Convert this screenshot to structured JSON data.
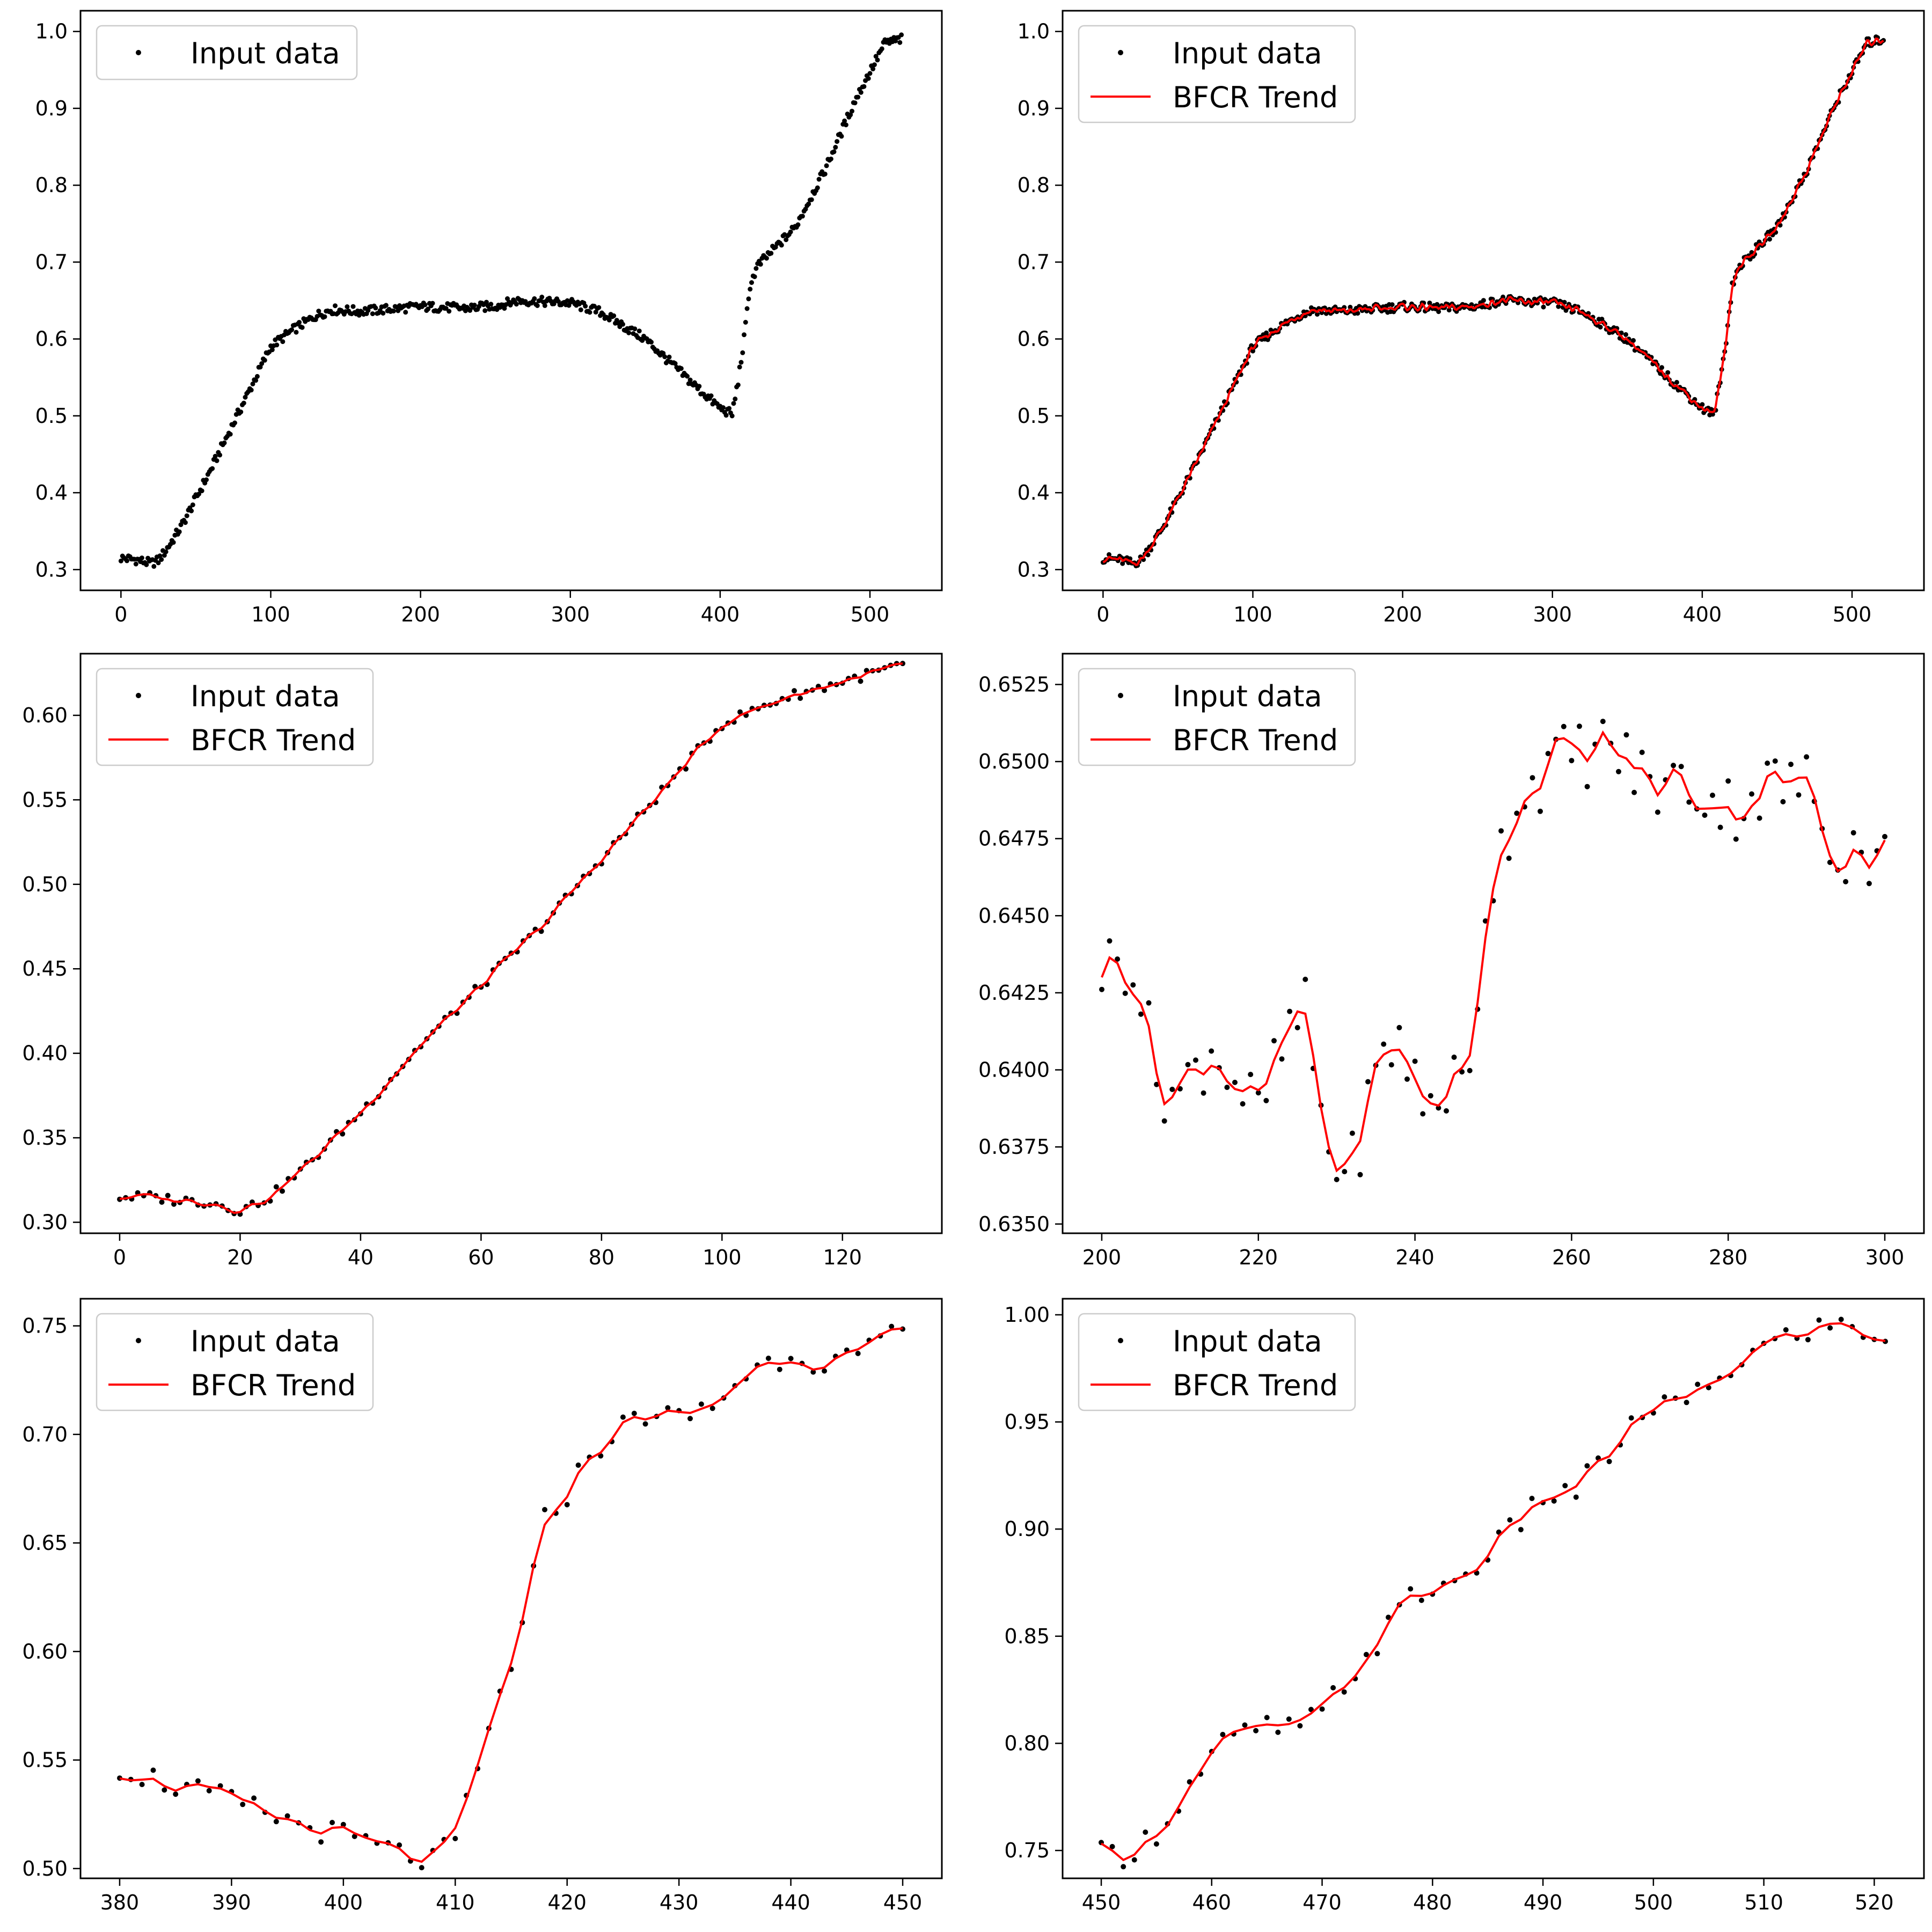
{
  "figure": {
    "background": "#ffffff"
  },
  "colors": {
    "points": "#000000",
    "trend": "#ff0000",
    "legend_border": "#cccccc"
  },
  "legend": {
    "data_label": "Input data",
    "trend_label": "BFCR Trend"
  },
  "chart_data": [
    {
      "type": "scatter",
      "panel": "top-left",
      "title": "",
      "xlabel": "",
      "ylabel": "",
      "legend_placement": "top-left",
      "show_trend": false,
      "xlim": [
        -27,
        548
      ],
      "ylim": [
        0.273,
        1.027
      ],
      "xticks": [
        0,
        100,
        200,
        300,
        400,
        500
      ],
      "xtick_labels": [
        "0",
        "100",
        "200",
        "300",
        "400",
        "500"
      ],
      "yticks": [
        0.3,
        0.4,
        0.5,
        0.6,
        0.7,
        0.8,
        0.9,
        1.0
      ],
      "ytick_labels": [
        "0.3",
        "0.4",
        "0.5",
        "0.6",
        "0.7",
        "0.8",
        "0.9",
        "1.0"
      ],
      "curve_keypoints": [
        [
          0,
          0.315
        ],
        [
          10,
          0.313
        ],
        [
          20,
          0.308
        ],
        [
          25,
          0.312
        ],
        [
          30,
          0.325
        ],
        [
          40,
          0.355
        ],
        [
          60,
          0.43
        ],
        [
          80,
          0.51
        ],
        [
          100,
          0.59
        ],
        [
          115,
          0.612
        ],
        [
          130,
          0.63
        ],
        [
          140,
          0.638
        ],
        [
          160,
          0.636
        ],
        [
          200,
          0.642
        ],
        [
          230,
          0.64
        ],
        [
          250,
          0.643
        ],
        [
          265,
          0.65
        ],
        [
          300,
          0.647
        ],
        [
          320,
          0.635
        ],
        [
          350,
          0.6
        ],
        [
          380,
          0.545
        ],
        [
          400,
          0.51
        ],
        [
          408,
          0.502
        ],
        [
          412,
          0.545
        ],
        [
          416,
          0.6
        ],
        [
          420,
          0.67
        ],
        [
          425,
          0.695
        ],
        [
          440,
          0.725
        ],
        [
          450,
          0.745
        ],
        [
          470,
          0.82
        ],
        [
          490,
          0.91
        ],
        [
          510,
          0.985
        ],
        [
          521,
          0.99
        ]
      ],
      "x_range": [
        0,
        521
      ],
      "point_step": 1,
      "noise_amplitude": 0.006
    },
    {
      "type": "scatter+line",
      "panel": "top-right",
      "title": "",
      "xlabel": "",
      "ylabel": "",
      "legend_placement": "top-left",
      "show_trend": true,
      "xlim": [
        -27,
        548
      ],
      "ylim": [
        0.273,
        1.027
      ],
      "xticks": [
        0,
        100,
        200,
        300,
        400,
        500
      ],
      "xtick_labels": [
        "0",
        "100",
        "200",
        "300",
        "400",
        "500"
      ],
      "yticks": [
        0.3,
        0.4,
        0.5,
        0.6,
        0.7,
        0.8,
        0.9,
        1.0
      ],
      "ytick_labels": [
        "0.3",
        "0.4",
        "0.5",
        "0.6",
        "0.7",
        "0.8",
        "0.9",
        "1.0"
      ],
      "curve_keypoints": [
        [
          0,
          0.315
        ],
        [
          10,
          0.313
        ],
        [
          20,
          0.308
        ],
        [
          25,
          0.312
        ],
        [
          30,
          0.325
        ],
        [
          40,
          0.355
        ],
        [
          60,
          0.43
        ],
        [
          80,
          0.51
        ],
        [
          100,
          0.59
        ],
        [
          115,
          0.612
        ],
        [
          130,
          0.63
        ],
        [
          140,
          0.638
        ],
        [
          160,
          0.636
        ],
        [
          200,
          0.642
        ],
        [
          230,
          0.64
        ],
        [
          250,
          0.643
        ],
        [
          265,
          0.65
        ],
        [
          300,
          0.647
        ],
        [
          320,
          0.635
        ],
        [
          350,
          0.6
        ],
        [
          380,
          0.545
        ],
        [
          400,
          0.51
        ],
        [
          408,
          0.502
        ],
        [
          412,
          0.545
        ],
        [
          416,
          0.6
        ],
        [
          420,
          0.67
        ],
        [
          425,
          0.695
        ],
        [
          440,
          0.725
        ],
        [
          450,
          0.745
        ],
        [
          470,
          0.82
        ],
        [
          490,
          0.91
        ],
        [
          510,
          0.985
        ],
        [
          521,
          0.99
        ]
      ],
      "x_range": [
        0,
        521
      ],
      "point_step": 1,
      "noise_amplitude": 0.006
    },
    {
      "type": "scatter+line",
      "panel": "middle-left",
      "title": "",
      "xlabel": "",
      "ylabel": "",
      "legend_placement": "top-left",
      "show_trend": true,
      "xlim": [
        -6.5,
        136.5
      ],
      "ylim": [
        0.2935,
        0.6365
      ],
      "xticks": [
        0,
        20,
        40,
        60,
        80,
        100,
        120
      ],
      "xtick_labels": [
        "0",
        "20",
        "40",
        "60",
        "80",
        "100",
        "120"
      ],
      "yticks": [
        0.3,
        0.35,
        0.4,
        0.45,
        0.5,
        0.55,
        0.6
      ],
      "ytick_labels": [
        "0.30",
        "0.35",
        "0.40",
        "0.45",
        "0.50",
        "0.55",
        "0.60"
      ],
      "curve_keypoints": [
        [
          0,
          0.315
        ],
        [
          5,
          0.315
        ],
        [
          10,
          0.313
        ],
        [
          15,
          0.312
        ],
        [
          20,
          0.307
        ],
        [
          25,
          0.315
        ],
        [
          30,
          0.33
        ],
        [
          40,
          0.365
        ],
        [
          50,
          0.405
        ],
        [
          60,
          0.44
        ],
        [
          70,
          0.475
        ],
        [
          80,
          0.515
        ],
        [
          90,
          0.555
        ],
        [
          100,
          0.595
        ],
        [
          110,
          0.61
        ],
        [
          120,
          0.62
        ],
        [
          130,
          0.63
        ]
      ],
      "x_range": [
        0,
        130
      ],
      "point_step": 1,
      "noise_amplitude": 0.003
    },
    {
      "type": "scatter+line",
      "panel": "middle-right",
      "title": "",
      "xlabel": "",
      "ylabel": "",
      "legend_placement": "top-left",
      "show_trend": true,
      "xlim": [
        195,
        305
      ],
      "ylim": [
        0.6347,
        0.6535
      ],
      "xticks": [
        200,
        220,
        240,
        260,
        280,
        300
      ],
      "xtick_labels": [
        "200",
        "220",
        "240",
        "260",
        "280",
        "300"
      ],
      "yticks": [
        0.635,
        0.6375,
        0.64,
        0.6425,
        0.645,
        0.6475,
        0.65,
        0.6525
      ],
      "ytick_labels": [
        "0.6350",
        "0.6375",
        "0.6400",
        "0.6425",
        "0.6450",
        "0.6475",
        "0.6500",
        "0.6525"
      ],
      "curve_keypoints": [
        [
          200,
          0.6433
        ],
        [
          204,
          0.6437
        ],
        [
          207,
          0.6397
        ],
        [
          210,
          0.6392
        ],
        [
          214,
          0.6408
        ],
        [
          218,
          0.6393
        ],
        [
          220,
          0.6385
        ],
        [
          224,
          0.6412
        ],
        [
          226,
          0.6418
        ],
        [
          229,
          0.6372
        ],
        [
          232,
          0.6368
        ],
        [
          235,
          0.6398
        ],
        [
          238,
          0.6412
        ],
        [
          241,
          0.6387
        ],
        [
          244,
          0.6395
        ],
        [
          247,
          0.6395
        ],
        [
          249,
          0.6455
        ],
        [
          253,
          0.6488
        ],
        [
          257,
          0.6498
        ],
        [
          260,
          0.6502
        ],
        [
          265,
          0.6505
        ],
        [
          270,
          0.6492
        ],
        [
          275,
          0.6493
        ],
        [
          280,
          0.6485
        ],
        [
          285,
          0.6492
        ],
        [
          290,
          0.6492
        ],
        [
          294,
          0.6472
        ],
        [
          296,
          0.6472
        ],
        [
          300,
          0.6468
        ]
      ],
      "x_range": [
        200,
        300
      ],
      "point_step": 1,
      "noise_amplitude": 0.0012
    },
    {
      "type": "scatter+line",
      "panel": "bottom-left",
      "title": "",
      "xlabel": "",
      "ylabel": "",
      "legend_placement": "top-left",
      "show_trend": true,
      "xlim": [
        376.5,
        453.5
      ],
      "ylim": [
        0.4955,
        0.7625
      ],
      "xticks": [
        380,
        390,
        400,
        410,
        420,
        430,
        440,
        450
      ],
      "xtick_labels": [
        "380",
        "390",
        "400",
        "410",
        "420",
        "430",
        "440",
        "450"
      ],
      "yticks": [
        0.5,
        0.55,
        0.6,
        0.65,
        0.7,
        0.75
      ],
      "ytick_labels": [
        "0.50",
        "0.55",
        "0.60",
        "0.65",
        "0.70",
        "0.75"
      ],
      "curve_keypoints": [
        [
          380,
          0.547
        ],
        [
          385,
          0.538
        ],
        [
          390,
          0.531
        ],
        [
          395,
          0.522
        ],
        [
          400,
          0.515
        ],
        [
          405,
          0.507
        ],
        [
          408,
          0.503
        ],
        [
          410,
          0.512
        ],
        [
          412,
          0.545
        ],
        [
          414,
          0.58
        ],
        [
          416,
          0.61
        ],
        [
          418,
          0.66
        ],
        [
          420,
          0.673
        ],
        [
          422,
          0.69
        ],
        [
          424,
          0.7
        ],
        [
          427,
          0.71
        ],
        [
          430,
          0.707
        ],
        [
          433,
          0.713
        ],
        [
          436,
          0.728
        ],
        [
          440,
          0.738
        ],
        [
          443,
          0.733
        ],
        [
          446,
          0.735
        ],
        [
          448,
          0.74
        ],
        [
          449,
          0.75
        ],
        [
          450,
          0.747
        ]
      ],
      "x_range": [
        380,
        450
      ],
      "point_step": 1,
      "noise_amplitude": 0.006
    },
    {
      "type": "scatter+line",
      "panel": "bottom-right",
      "title": "",
      "xlabel": "",
      "ylabel": "",
      "legend_placement": "top-left",
      "show_trend": true,
      "xlim": [
        446.5,
        524.5
      ],
      "ylim": [
        0.737,
        1.0075
      ],
      "xticks": [
        450,
        460,
        470,
        480,
        490,
        500,
        510,
        520
      ],
      "xtick_labels": [
        "450",
        "460",
        "470",
        "480",
        "490",
        "500",
        "510",
        "520"
      ],
      "yticks": [
        0.75,
        0.8,
        0.85,
        0.9,
        0.95,
        1.0
      ],
      "ytick_labels": [
        "0.75",
        "0.80",
        "0.85",
        "0.90",
        "0.95",
        "1.00"
      ],
      "curve_keypoints": [
        [
          450,
          0.748
        ],
        [
          452,
          0.748
        ],
        [
          455,
          0.758
        ],
        [
          458,
          0.78
        ],
        [
          461,
          0.8
        ],
        [
          465,
          0.808
        ],
        [
          468,
          0.806
        ],
        [
          470,
          0.815
        ],
        [
          474,
          0.84
        ],
        [
          478,
          0.868
        ],
        [
          482,
          0.875
        ],
        [
          486,
          0.893
        ],
        [
          490,
          0.915
        ],
        [
          493,
          0.918
        ],
        [
          496,
          0.935
        ],
        [
          500,
          0.958
        ],
        [
          503,
          0.958
        ],
        [
          507,
          0.975
        ],
        [
          510,
          0.985
        ],
        [
          514,
          0.993
        ],
        [
          517,
          0.995
        ],
        [
          521,
          0.99
        ]
      ],
      "x_range": [
        450,
        521
      ],
      "point_step": 1,
      "noise_amplitude": 0.006
    }
  ]
}
